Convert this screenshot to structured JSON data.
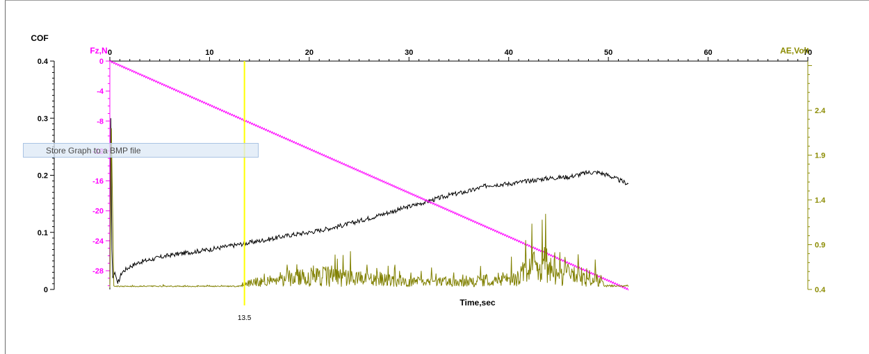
{
  "chart_data": {
    "type": "line",
    "x_axis": {
      "label": "Time,sec",
      "range": [
        0,
        70
      ],
      "ticks": [
        "0",
        "10",
        "20",
        "30",
        "40",
        "50",
        "60",
        "70"
      ]
    },
    "y_axes": {
      "cof": {
        "label": "COF",
        "range": [
          0,
          0.4
        ],
        "ticks": [
          "0",
          "0.1",
          "0.2",
          "0.3",
          "0.4"
        ],
        "color": "#000000"
      },
      "fz": {
        "label": "Fz,N",
        "range": [
          -30.5,
          0
        ],
        "ticks": [
          "0",
          "-4",
          "-8",
          "-12",
          "-16",
          "-20",
          "-24",
          "-28"
        ],
        "color": "#ff00ff"
      },
      "ae": {
        "label": "AE,Volt",
        "range": [
          0.4,
          2.95
        ],
        "ticks": [
          "0.4",
          "0.9",
          "1.4",
          "1.9",
          "2.4"
        ],
        "color": "#8b8b00"
      }
    },
    "marker": {
      "x": 13.5,
      "label": "13.5",
      "color": "#ffff00"
    },
    "series": [
      {
        "name": "COF",
        "axis": "cof",
        "color": "#000000",
        "x": [
          0,
          0.1,
          0.2,
          0.3,
          0.5,
          0.8,
          1.2,
          2,
          3,
          4,
          5,
          6,
          8,
          10,
          12,
          14,
          16,
          18,
          20,
          22,
          24,
          26,
          28,
          30,
          32,
          34,
          36,
          38,
          40,
          42,
          44,
          46,
          48,
          49,
          50,
          51,
          52
        ],
        "y": [
          0,
          0.3,
          0.07,
          0.02,
          0.03,
          0.01,
          0.03,
          0.04,
          0.048,
          0.052,
          0.056,
          0.06,
          0.065,
          0.07,
          0.076,
          0.082,
          0.088,
          0.095,
          0.1,
          0.107,
          0.115,
          0.125,
          0.135,
          0.145,
          0.155,
          0.165,
          0.172,
          0.183,
          0.185,
          0.19,
          0.195,
          0.197,
          0.205,
          0.205,
          0.2,
          0.192,
          0.185
        ]
      },
      {
        "name": "Fz,N",
        "axis": "fz",
        "color": "#ff00ff",
        "x": [
          0,
          52
        ],
        "y": [
          0,
          -30.5
        ]
      },
      {
        "name": "AE,Volt",
        "axis": "ae",
        "color": "#808000",
        "x": [
          0,
          0.2,
          0.5,
          2,
          12.5,
          13.5,
          14,
          16,
          18,
          20,
          22,
          24,
          26,
          28,
          30,
          32,
          34,
          36,
          38,
          40,
          41,
          42,
          43,
          44,
          45,
          46,
          48,
          49,
          50,
          52
        ],
        "y": [
          0.42,
          2.2,
          0.44,
          0.42,
          0.42,
          0.45,
          0.5,
          0.55,
          0.6,
          0.62,
          0.64,
          0.6,
          0.58,
          0.55,
          0.52,
          0.52,
          0.52,
          0.53,
          0.55,
          0.58,
          0.64,
          0.72,
          0.82,
          0.85,
          0.8,
          0.7,
          0.6,
          0.55,
          0.45,
          0.44
        ]
      }
    ],
    "grid": false
  },
  "tooltip": {
    "text": "Store Graph to a BMP file"
  }
}
